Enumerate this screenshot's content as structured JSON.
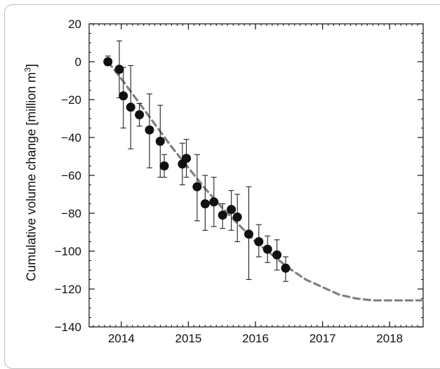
{
  "chart_data": {
    "type": "scatter",
    "title": "",
    "xlabel": "",
    "ylabel": "Cumulative volume change [million m",
    "ylabel_superscript": "3",
    "ylabel_suffix": "]",
    "xlim": [
      2013.52,
      2018.5
    ],
    "ylim": [
      -140,
      20
    ],
    "x_tick_labels": [
      "2014",
      "2015",
      "2016",
      "2017",
      "2018"
    ],
    "x_tick_values": [
      2014,
      2015,
      2016,
      2017,
      2018
    ],
    "y_tick_values": [
      20,
      0,
      -20,
      -40,
      -60,
      -80,
      -100,
      -120,
      -140
    ],
    "y_tick_labels": [
      "20",
      "0",
      "−20",
      "−40",
      "−60",
      "−80",
      "−100",
      "−120",
      "−140"
    ],
    "grid": false,
    "series": [
      {
        "kind": "points-with-error-bars",
        "color": "#111111",
        "points": [
          {
            "x": 2013.8,
            "y": 0,
            "ylo": -2,
            "yhi": 3
          },
          {
            "x": 2013.97,
            "y": -4,
            "ylo": -19,
            "yhi": 11
          },
          {
            "x": 2014.03,
            "y": -18,
            "ylo": -35,
            "yhi": -3
          },
          {
            "x": 2014.14,
            "y": -24,
            "ylo": -46,
            "yhi": -2
          },
          {
            "x": 2014.27,
            "y": -28,
            "ylo": -34,
            "yhi": -22
          },
          {
            "x": 2014.42,
            "y": -36,
            "ylo": -56,
            "yhi": -17
          },
          {
            "x": 2014.58,
            "y": -42,
            "ylo": -61,
            "yhi": -23
          },
          {
            "x": 2014.64,
            "y": -55,
            "ylo": -61,
            "yhi": -49
          },
          {
            "x": 2014.91,
            "y": -54,
            "ylo": -65,
            "yhi": -43
          },
          {
            "x": 2014.97,
            "y": -51,
            "ylo": -61,
            "yhi": -41
          },
          {
            "x": 2015.13,
            "y": -66,
            "ylo": -84,
            "yhi": -49
          },
          {
            "x": 2015.25,
            "y": -75,
            "ylo": -89,
            "yhi": -60
          },
          {
            "x": 2015.38,
            "y": -74,
            "ylo": -87,
            "yhi": -61
          },
          {
            "x": 2015.51,
            "y": -81,
            "ylo": -88,
            "yhi": -75
          },
          {
            "x": 2015.64,
            "y": -78,
            "ylo": -89,
            "yhi": -68
          },
          {
            "x": 2015.73,
            "y": -82,
            "ylo": -95,
            "yhi": -70
          },
          {
            "x": 2015.9,
            "y": -91,
            "ylo": -115,
            "yhi": -66
          },
          {
            "x": 2016.05,
            "y": -95,
            "ylo": -103,
            "yhi": -86
          },
          {
            "x": 2016.18,
            "y": -99,
            "ylo": -106,
            "yhi": -92
          },
          {
            "x": 2016.32,
            "y": -102,
            "ylo": -110,
            "yhi": -94
          },
          {
            "x": 2016.45,
            "y": -109,
            "ylo": -116,
            "yhi": -103
          }
        ]
      },
      {
        "kind": "dashed-fit",
        "color": "#808080",
        "x": [
          2013.8,
          2014.0,
          2014.25,
          2014.5,
          2014.75,
          2015.0,
          2015.25,
          2015.5,
          2015.75,
          2016.0,
          2016.25,
          2016.5,
          2016.75,
          2017.0,
          2017.25,
          2017.5,
          2017.75,
          2018.0,
          2018.25,
          2018.5
        ],
        "y": [
          0,
          -9,
          -21,
          -33,
          -45,
          -56,
          -67,
          -77,
          -86,
          -95,
          -102,
          -109,
          -115,
          -119,
          -123,
          -125,
          -126,
          -126,
          -126,
          -126
        ]
      }
    ]
  }
}
